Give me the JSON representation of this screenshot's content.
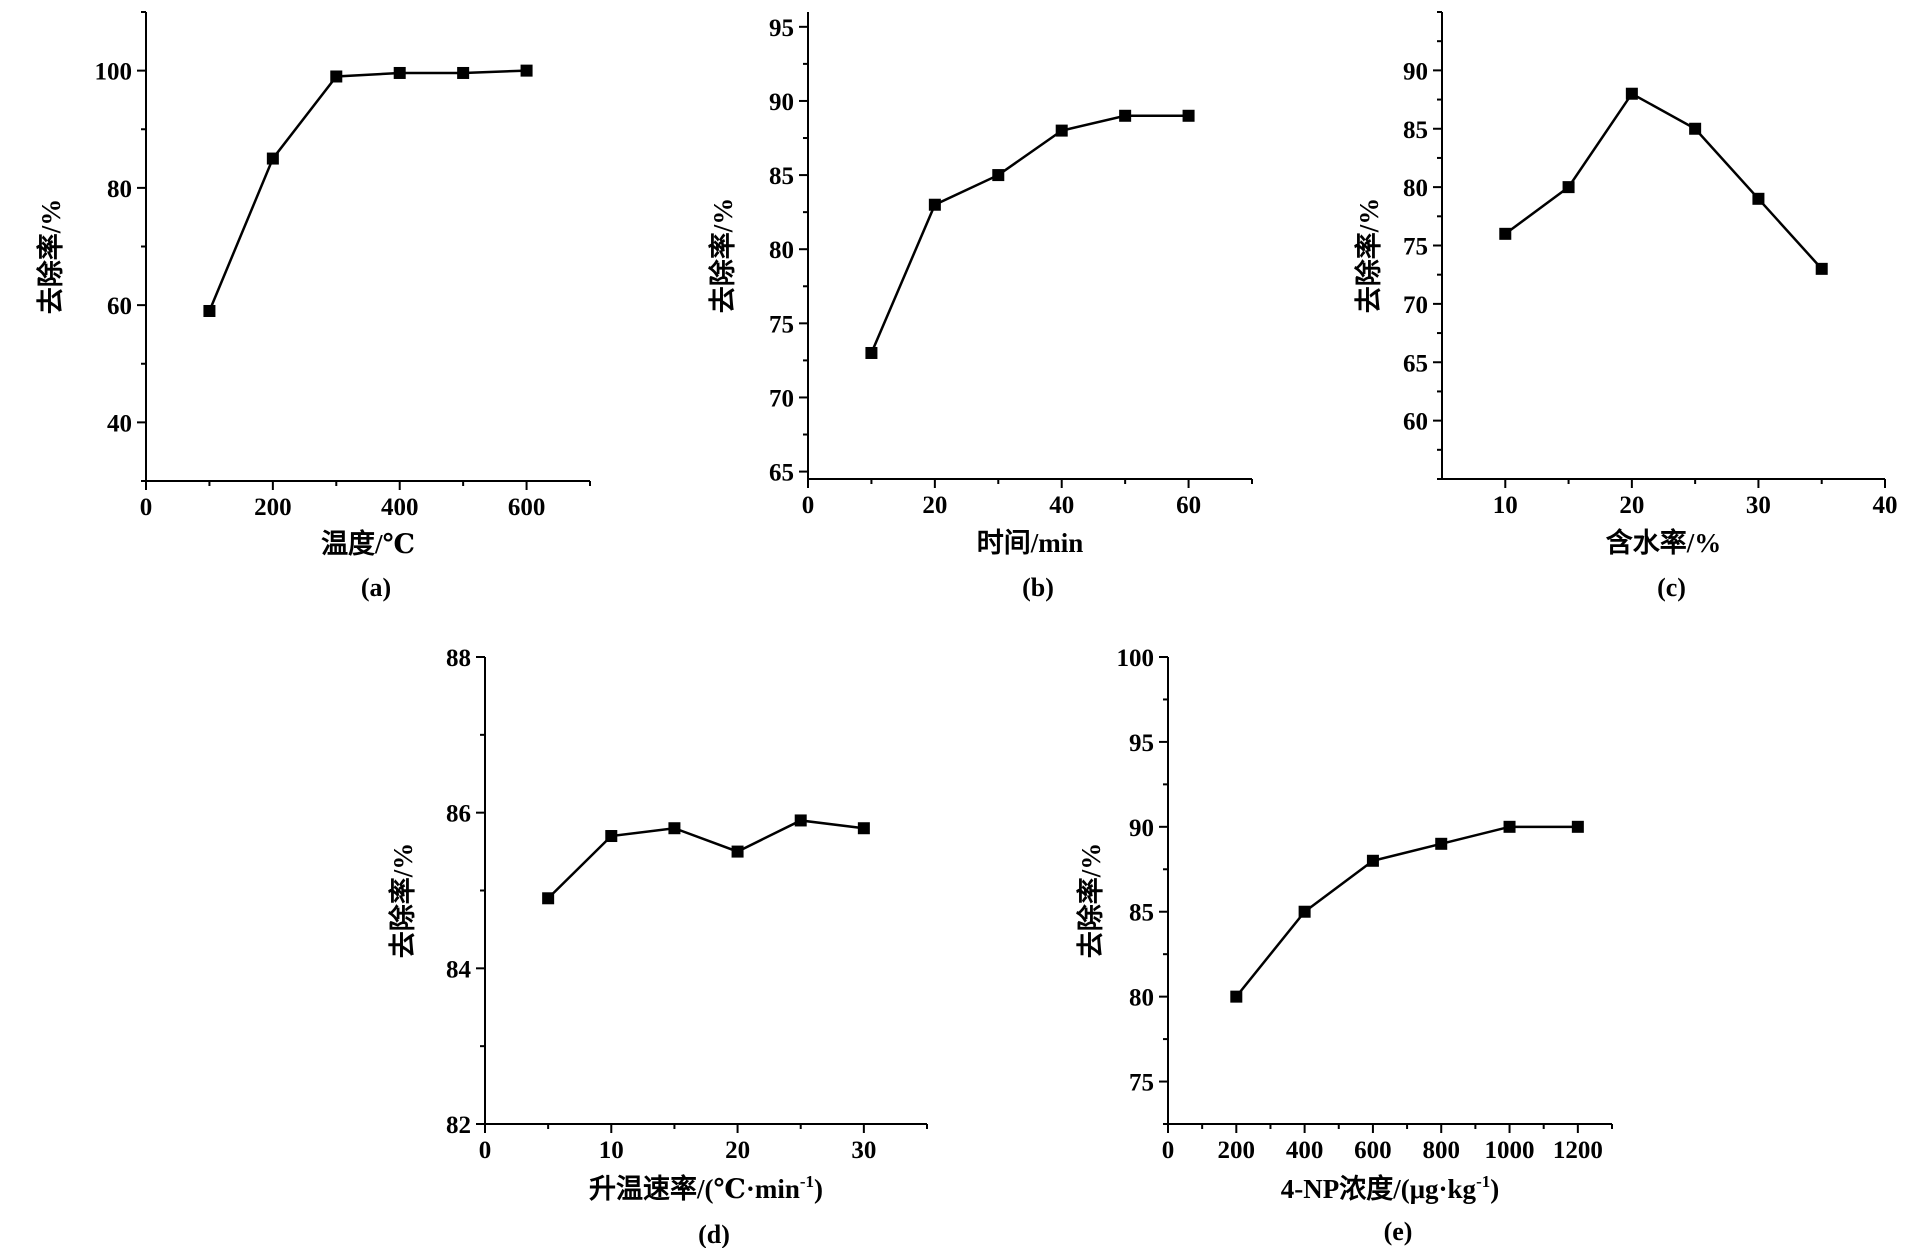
{
  "chart_data": [
    {
      "type": "line",
      "panel_label": "(a)",
      "x": [
        100,
        200,
        300,
        400,
        500,
        600
      ],
      "values": [
        59,
        85,
        99,
        99.6,
        99.6,
        100
      ],
      "xlabel": "温度/℃",
      "ylabel": "去除率/%",
      "xlim": [
        0,
        700
      ],
      "ylim": [
        30,
        110
      ],
      "xticks": [
        0,
        200,
        400,
        600
      ],
      "yticks": [
        40,
        60,
        80,
        100
      ],
      "grid": false,
      "legend": "none"
    },
    {
      "type": "line",
      "panel_label": "(b)",
      "x": [
        10,
        20,
        30,
        40,
        50,
        60
      ],
      "values": [
        73,
        83,
        85,
        88,
        89,
        89
      ],
      "xlabel": "时间/min",
      "ylabel": "去除率/%",
      "xlim": [
        0,
        70
      ],
      "ylim": [
        64.5,
        96
      ],
      "xticks": [
        0,
        20,
        40,
        60
      ],
      "yticks": [
        65,
        70,
        75,
        80,
        85,
        90,
        95
      ],
      "grid": false,
      "legend": "none"
    },
    {
      "type": "line",
      "panel_label": "(c)",
      "x": [
        10,
        15,
        20,
        25,
        30,
        35
      ],
      "values": [
        76,
        80,
        88,
        85,
        79,
        73
      ],
      "xlabel": "含水率/%",
      "ylabel": "去除率/%",
      "xlim": [
        5,
        40
      ],
      "ylim": [
        55,
        95
      ],
      "xticks": [
        10,
        20,
        30,
        40
      ],
      "yticks": [
        60,
        65,
        70,
        75,
        80,
        85,
        90
      ],
      "grid": false,
      "legend": "none"
    },
    {
      "type": "line",
      "panel_label": "(d)",
      "x": [
        5,
        10,
        15,
        20,
        25,
        30
      ],
      "values": [
        84.9,
        85.7,
        85.8,
        85.5,
        85.9,
        85.8
      ],
      "xlabel": "升温速率/(℃·min",
      "xlabel_sup": "-1",
      "xlabel_end": ")",
      "ylabel": "去除率/%",
      "xlim": [
        0,
        35
      ],
      "ylim": [
        82,
        88
      ],
      "xticks": [
        0,
        10,
        20,
        30
      ],
      "yticks": [
        82,
        84,
        86,
        88
      ],
      "grid": false,
      "legend": "none"
    },
    {
      "type": "line",
      "panel_label": "(e)",
      "x": [
        200,
        400,
        600,
        800,
        1000,
        1200
      ],
      "values": [
        80,
        85,
        88,
        89,
        90,
        90
      ],
      "xlabel": "4-NP浓度/(μg·kg",
      "xlabel_sup": "-1",
      "xlabel_end": ")",
      "ylabel": "去除率/%",
      "xlim": [
        0,
        1300
      ],
      "ylim": [
        72.5,
        100
      ],
      "xticks": [
        0,
        200,
        400,
        600,
        800,
        1000,
        1200
      ],
      "yticks": [
        75,
        80,
        85,
        90,
        95,
        100
      ],
      "grid": false,
      "legend": "none"
    }
  ]
}
